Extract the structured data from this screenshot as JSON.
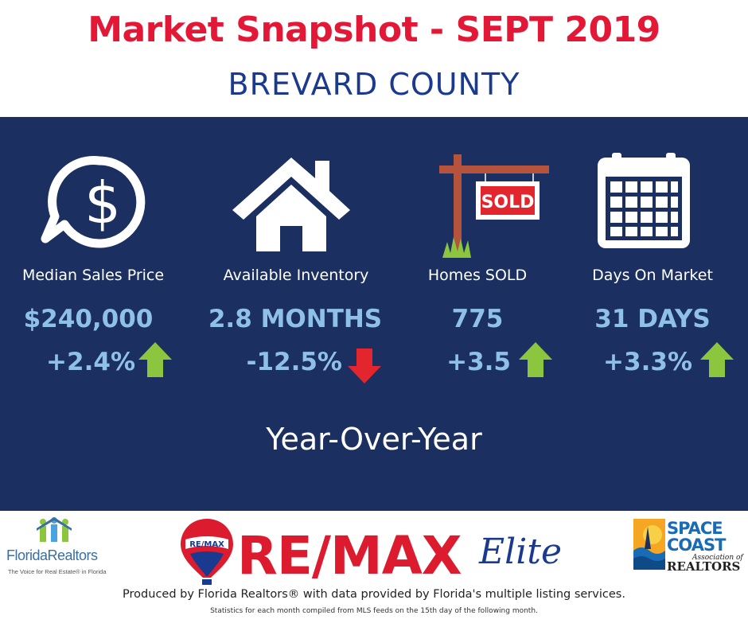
{
  "header": {
    "title": "Market Snapshot - SEPT 2019",
    "subtitle": "BREVARD COUNTY"
  },
  "stats": [
    {
      "icon": "dollar-chat-icon",
      "label": "Median Sales Price",
      "value": "$240,000",
      "change": "+2.4%",
      "direction": "up"
    },
    {
      "icon": "house-icon",
      "label": "Available Inventory",
      "value": "2.8 MONTHS",
      "change": "-12.5%",
      "direction": "down"
    },
    {
      "icon": "sold-sign-icon",
      "label": "Homes SOLD",
      "value": "775",
      "change": "+3.5",
      "direction": "up",
      "sign_text": "SOLD"
    },
    {
      "icon": "calendar-icon",
      "label": "Days On Market",
      "value": "31 DAYS",
      "change": "+3.3%",
      "direction": "up"
    }
  ],
  "comparison_label": "Year-Over-Year",
  "logos": {
    "florida_realtors": {
      "name": "FloridaRealtors",
      "tagline": "The Voice for Real Estate® in Florida"
    },
    "remax": {
      "balloon_text": "RE/MAX",
      "word": "RE/MAX",
      "suffix": "Elite"
    },
    "space_coast": {
      "line1": "SPACE",
      "line2": "COAST",
      "line3": "Association of",
      "line4": "REALTORS"
    }
  },
  "footer": {
    "main": "Produced by Florida Realtors® with data provided by Florida's multiple listing services.",
    "sub": "Statistics for each month compiled from MLS feeds on the 15th day of the following month."
  },
  "colors": {
    "title_red": "#e31837",
    "subtitle_blue": "#1a3a8f",
    "panel_navy": "#1b3060",
    "value_light_blue": "#8fc0e8",
    "arrow_up_green": "#8cc63f",
    "arrow_down_red": "#e3262d"
  }
}
